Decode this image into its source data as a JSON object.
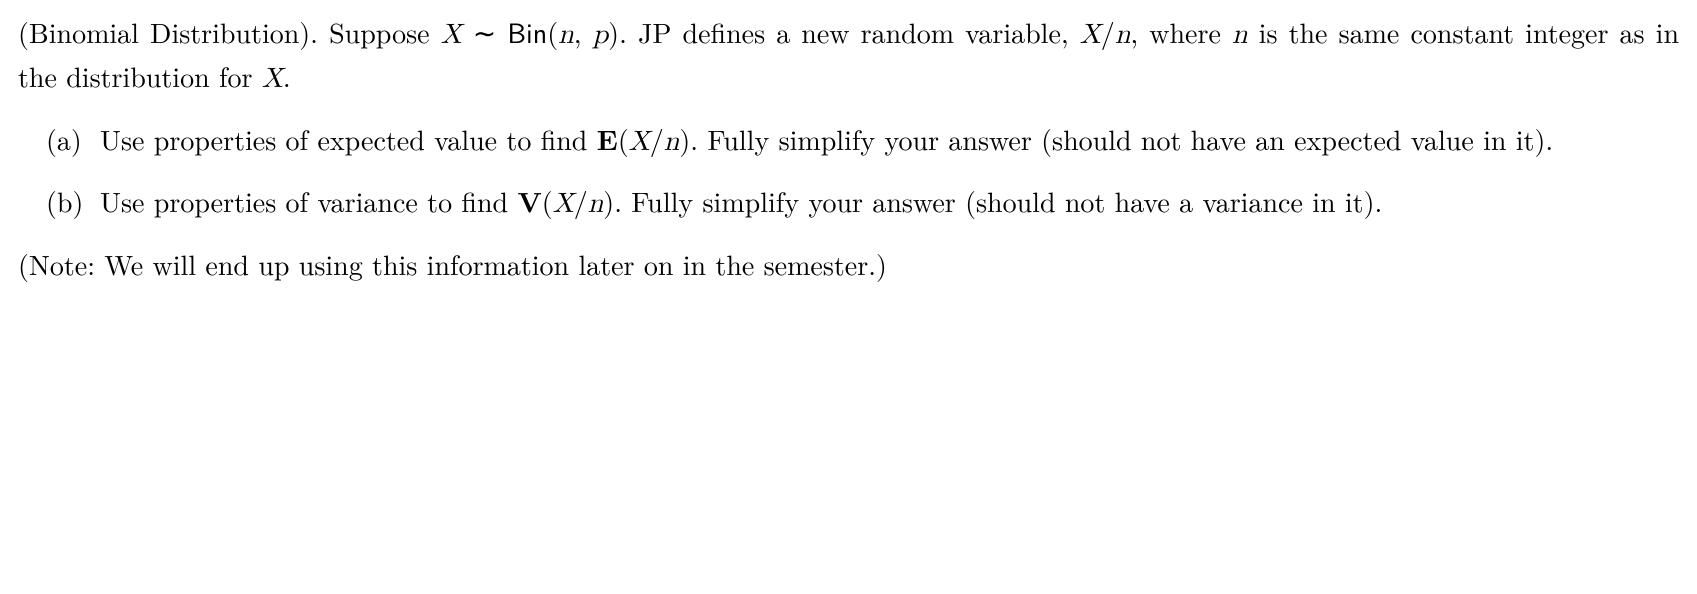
{
  "intro": {
    "prefix": "(Binomial Distribution). Suppose ",
    "X": "X",
    "tilde": " ∼ ",
    "Bin": "Bin",
    "open": "(",
    "n": "n",
    "comma": ", ",
    "p": "p",
    "close": ")",
    "mid1": ". JP defines a new random variable, ",
    "X2": "X",
    "slash": "/",
    "n2": "n",
    "mid2": ", where ",
    "n3": "n",
    "tail": " is the same constant integer as in the distribution for ",
    "X3": "X",
    "period": "."
  },
  "items": [
    {
      "label": "(a)",
      "t1": "Use properties of expected value to find ",
      "E": "E",
      "open": "(",
      "X": "X",
      "slash": "/",
      "n": "n",
      "close": ")",
      "t2": ". Fully simplify your answer (should not have an expected value in it)."
    },
    {
      "label": "(b)",
      "t1": "Use properties of variance to find ",
      "E": "V",
      "open": "(",
      "X": "X",
      "slash": "/",
      "n": "n",
      "close": ")",
      "t2": ". Fully simplify your answer (should not have a variance in it)."
    }
  ],
  "note": "(Note: We will end up using this information later on in the semester.)"
}
